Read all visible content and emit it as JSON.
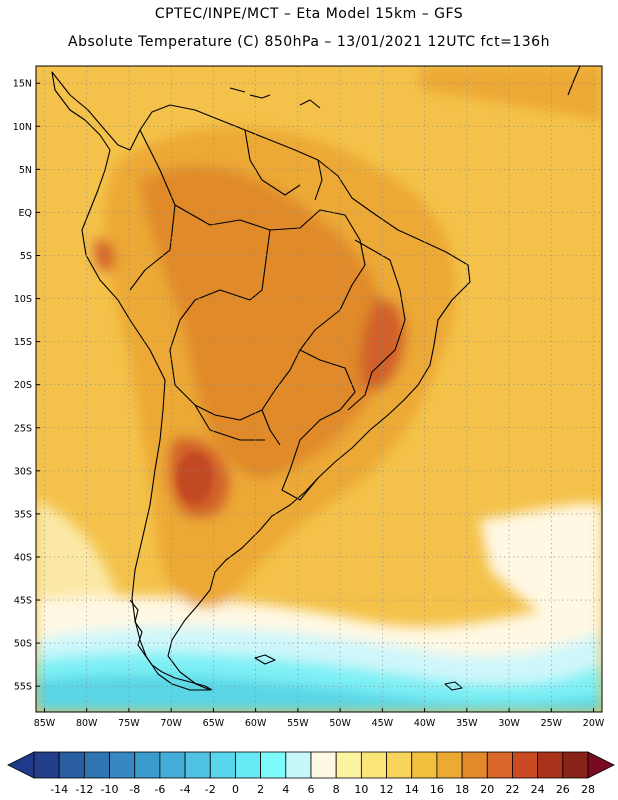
{
  "header": {
    "line1": "CPTEC/INPE/MCT –  Eta Model 15km – GFS",
    "line2": "Absolute Temperature (C) 850hPa – 13/01/2021 12UTC fct=136h"
  },
  "map": {
    "lon_range": [
      -86,
      -19
    ],
    "lat_range": [
      -58,
      17
    ],
    "lat_ticks": [
      {
        "value": 15,
        "label": "15N"
      },
      {
        "value": 10,
        "label": "10N"
      },
      {
        "value": 5,
        "label": "5N"
      },
      {
        "value": 0,
        "label": "EQ"
      },
      {
        "value": -5,
        "label": "5S"
      },
      {
        "value": -10,
        "label": "10S"
      },
      {
        "value": -15,
        "label": "15S"
      },
      {
        "value": -20,
        "label": "20S"
      },
      {
        "value": -25,
        "label": "25S"
      },
      {
        "value": -30,
        "label": "30S"
      },
      {
        "value": -35,
        "label": "35S"
      },
      {
        "value": -40,
        "label": "40S"
      },
      {
        "value": -45,
        "label": "45S"
      },
      {
        "value": -50,
        "label": "50S"
      },
      {
        "value": -55,
        "label": "55S"
      }
    ],
    "lon_ticks": [
      {
        "value": -85,
        "label": "85W"
      },
      {
        "value": -80,
        "label": "80W"
      },
      {
        "value": -75,
        "label": "75W"
      },
      {
        "value": -70,
        "label": "70W"
      },
      {
        "value": -65,
        "label": "65W"
      },
      {
        "value": -60,
        "label": "60W"
      },
      {
        "value": -55,
        "label": "55W"
      },
      {
        "value": -50,
        "label": "50W"
      },
      {
        "value": -45,
        "label": "45W"
      },
      {
        "value": -40,
        "label": "40W"
      },
      {
        "value": -35,
        "label": "35W"
      },
      {
        "value": -30,
        "label": "30W"
      },
      {
        "value": -25,
        "label": "25W"
      },
      {
        "value": -20,
        "label": "20W"
      }
    ],
    "grid": "dotted",
    "field_colors": {
      "ocean_mid": "#f4c24a",
      "warm": "#eca934",
      "hot": "#e08a2c",
      "very_hot": "#d2602a",
      "peak": "#c24a22",
      "cool": "#fbe8a6",
      "pale": "#fff8e3",
      "cyan_light": "#cff7fb",
      "cyan": "#7ef0f5",
      "cyan_mid": "#5ad6e6",
      "blue": "#3fb3d6",
      "coastline": "#000000"
    }
  },
  "colorbar": {
    "labels": [
      "-14",
      "-12",
      "-10",
      "-8",
      "-6",
      "-4",
      "-2",
      "0",
      "2",
      "4",
      "6",
      "8",
      "10",
      "12",
      "14",
      "16",
      "18",
      "20",
      "22",
      "24",
      "26",
      "28"
    ],
    "colors": [
      "#233f8c",
      "#2a5ea2",
      "#2f75b4",
      "#3588c1",
      "#3c9bcd",
      "#45aed8",
      "#50c2e2",
      "#5ad6ec",
      "#66eaf5",
      "#7efcfc",
      "#c8f7fb",
      "#fff8e3",
      "#fdf4a2",
      "#fbe579",
      "#f8d45c",
      "#f2bf3e",
      "#eca934",
      "#e08a2c",
      "#d9662a",
      "#c94a22",
      "#a8331a",
      "#8a2317"
    ],
    "low_arrow_color": "#1f3a8a",
    "high_arrow_color": "#7a0a22"
  }
}
